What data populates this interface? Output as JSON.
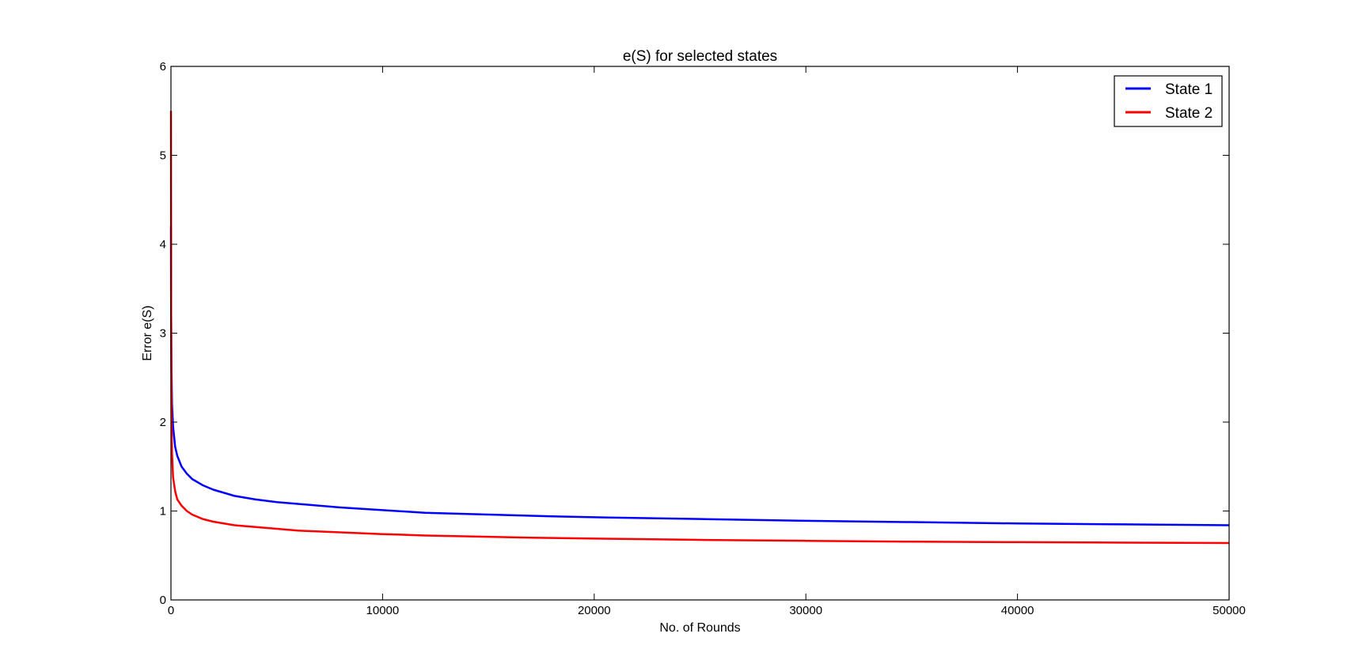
{
  "chart_data": {
    "type": "line",
    "title": "e(S) for selected states",
    "xlabel": "No. of Rounds",
    "ylabel": "Error e(S)",
    "xlim": [
      0,
      50000
    ],
    "ylim": [
      0,
      6
    ],
    "xticks": [
      0,
      10000,
      20000,
      30000,
      40000,
      50000
    ],
    "yticks": [
      0,
      1,
      2,
      3,
      4,
      5,
      6
    ],
    "grid": false,
    "legend_position": "top-right",
    "series": [
      {
        "name": "State 1",
        "color": "#0000ff",
        "x": [
          1,
          10,
          25,
          50,
          100,
          200,
          300,
          500,
          750,
          1000,
          1500,
          2000,
          3000,
          4000,
          5000,
          6000,
          8000,
          10000,
          12000,
          15000,
          18000,
          20000,
          25000,
          30000,
          35000,
          40000,
          45000,
          50000
        ],
        "y": [
          4.2,
          3.2,
          2.6,
          2.2,
          1.95,
          1.72,
          1.62,
          1.5,
          1.42,
          1.36,
          1.29,
          1.24,
          1.17,
          1.13,
          1.1,
          1.08,
          1.04,
          1.01,
          0.98,
          0.96,
          0.94,
          0.93,
          0.91,
          0.89,
          0.875,
          0.86,
          0.85,
          0.84
        ]
      },
      {
        "name": "State 2",
        "color": "#ff0000",
        "x": [
          1,
          10,
          25,
          50,
          100,
          200,
          300,
          500,
          750,
          1000,
          1500,
          2000,
          3000,
          4000,
          5000,
          6000,
          8000,
          10000,
          12000,
          15000,
          17000,
          20000,
          25000,
          30000,
          35000,
          40000,
          45000,
          50000
        ],
        "y": [
          5.5,
          3.0,
          2.1,
          1.65,
          1.38,
          1.22,
          1.13,
          1.06,
          1.0,
          0.96,
          0.91,
          0.88,
          0.84,
          0.82,
          0.8,
          0.78,
          0.76,
          0.74,
          0.725,
          0.71,
          0.7,
          0.69,
          0.675,
          0.665,
          0.655,
          0.65,
          0.645,
          0.64
        ]
      }
    ]
  }
}
